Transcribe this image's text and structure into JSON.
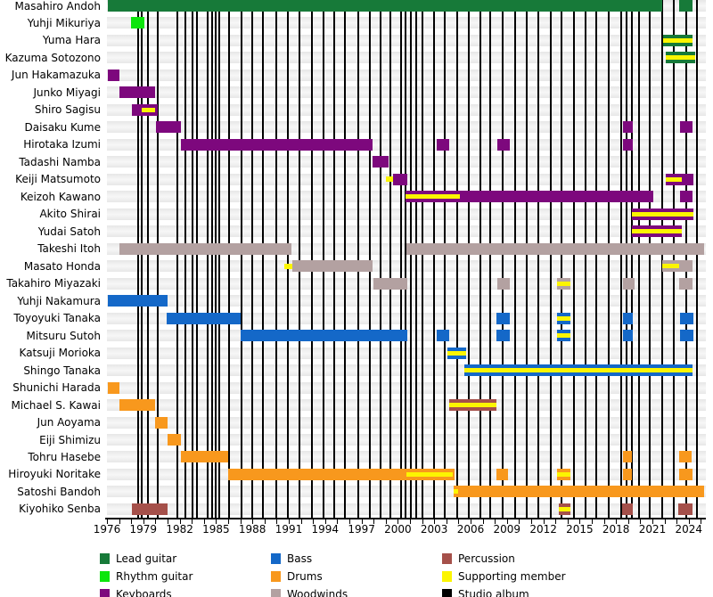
{
  "chart_data": {
    "type": "gantt-timeline",
    "description": "Band membership timeline: rows are members, horizontal bars show tenure by instrument, yellow stripes mark supporting-member periods, vertical black lines mark studio albums.",
    "x_axis": {
      "origin_year": 1976,
      "min_year": 1976,
      "max_year": 2025.4,
      "tick_every_year_from": 1976,
      "tick_every_year_to": 2025,
      "label_years": [
        1976,
        1979,
        1982,
        1985,
        1988,
        1991,
        1994,
        1997,
        2000,
        2003,
        2006,
        2009,
        2012,
        2015,
        2018,
        2021,
        2024
      ]
    },
    "roles": {
      "lead": {
        "label": "Lead guitar",
        "color": "#177a39"
      },
      "rhythm": {
        "label": "Rhythm guitar",
        "color": "#0ce50c"
      },
      "keyboards": {
        "label": "Keyboards",
        "color": "#7d087d"
      },
      "bass": {
        "label": "Bass",
        "color": "#1468c8"
      },
      "drums": {
        "label": "Drums",
        "color": "#f8981d"
      },
      "woodwinds": {
        "label": "Woodwinds",
        "color": "#b3a1a1"
      },
      "percussion": {
        "label": "Percussion",
        "color": "#a5504a"
      },
      "support": {
        "label": "Supporting member",
        "color": "#fcf500"
      },
      "album": {
        "label": "Studio album",
        "color": "#000000"
      }
    },
    "legend_columns": [
      [
        "lead",
        "rhythm",
        "keyboards"
      ],
      [
        "bass",
        "drums",
        "woodwinds"
      ],
      [
        "percussion",
        "support",
        "album"
      ]
    ],
    "album_years": [
      1978.55,
      1978.85,
      1979.35,
      1980.2,
      1981.8,
      1982.5,
      1983.05,
      1983.4,
      1984.3,
      1984.65,
      1985.0,
      1985.3,
      1986.1,
      1987.1,
      1988.0,
      1988.9,
      1990.0,
      1990.9,
      1991.9,
      1992.9,
      1993.9,
      1994.75,
      1995.6,
      1996.7,
      1997.7,
      1998.55,
      1999.4,
      2000.3,
      2000.65,
      2001.05,
      2001.5,
      2002.05,
      2003.0,
      2003.9,
      2004.9,
      2005.85,
      2006.8,
      2007.65,
      2008.65,
      2009.65,
      2010.65,
      2011.6,
      2012.6,
      2013.5,
      2014.5,
      2015.5,
      2016.4,
      2017.4,
      2018.4,
      2018.9,
      2019.3,
      2019.9,
      2020.8,
      2021.8,
      2022.8,
      2023.8,
      2024.7
    ],
    "members": [
      {
        "name": "Masahiro Andoh",
        "segments": [
          {
            "role": "lead",
            "start": 1976.1,
            "end": 2021.8
          },
          {
            "role": "lead",
            "start": 2023.2,
            "end": 2024.3
          }
        ]
      },
      {
        "name": "Yuhji Mikuriya",
        "segments": [
          {
            "role": "rhythm",
            "start": 1978.0,
            "end": 1979.1
          }
        ]
      },
      {
        "name": "Yuma Hara",
        "segments": [
          {
            "role": "lead",
            "start": 2021.9,
            "end": 2024.3,
            "support": [
              2021.9,
              2024.3
            ]
          }
        ]
      },
      {
        "name": "Kazuma Sotozono",
        "segments": [
          {
            "role": "lead",
            "start": 2022.1,
            "end": 2024.5,
            "support": [
              2022.1,
              2024.5
            ]
          }
        ]
      },
      {
        "name": "Jun Hakamazuka",
        "segments": [
          {
            "role": "keyboards",
            "start": 1976.1,
            "end": 1977.0
          }
        ]
      },
      {
        "name": "Junko Miyagi",
        "segments": [
          {
            "role": "keyboards",
            "start": 1977.0,
            "end": 1980.0
          }
        ]
      },
      {
        "name": "Shiro Sagisu",
        "segments": [
          {
            "role": "keyboards",
            "start": 1978.05,
            "end": 1980.2,
            "support": [
              1978.9,
              1980.0
            ]
          }
        ]
      },
      {
        "name": "Daisaku Kume",
        "segments": [
          {
            "role": "keyboards",
            "start": 1980.05,
            "end": 1982.1
          },
          {
            "role": "keyboards",
            "start": 2018.6,
            "end": 2019.4
          },
          {
            "role": "keyboards",
            "start": 2023.3,
            "end": 2024.3
          }
        ]
      },
      {
        "name": "Hirotaka Izumi",
        "segments": [
          {
            "role": "keyboards",
            "start": 1982.1,
            "end": 1997.9
          },
          {
            "role": "keyboards",
            "start": 2003.2,
            "end": 2004.2
          },
          {
            "role": "keyboards",
            "start": 2008.2,
            "end": 2009.2
          },
          {
            "role": "keyboards",
            "start": 2018.6,
            "end": 2019.4
          }
        ]
      },
      {
        "name": "Tadashi Namba",
        "segments": [
          {
            "role": "keyboards",
            "start": 1997.9,
            "end": 1999.2
          }
        ]
      },
      {
        "name": "Keiji Matsumoto",
        "segments": [
          {
            "role": "support",
            "start": 1999.0,
            "end": 1999.6,
            "support_only": true
          },
          {
            "role": "keyboards",
            "start": 1999.6,
            "end": 2000.8
          },
          {
            "role": "keyboards",
            "start": 2022.1,
            "end": 2024.4,
            "support": [
              2022.1,
              2023.4
            ]
          }
        ]
      },
      {
        "name": "Keizoh Kawano",
        "segments": [
          {
            "role": "keyboards",
            "start": 2000.6,
            "end": 2021.1,
            "support": [
              2000.6,
              2005.1
            ]
          },
          {
            "role": "keyboards",
            "start": 2023.3,
            "end": 2024.3
          }
        ]
      },
      {
        "name": "Akito Shirai",
        "segments": [
          {
            "role": "keyboards",
            "start": 2019.3,
            "end": 2024.4,
            "support": [
              2019.3,
              2024.4
            ]
          }
        ]
      },
      {
        "name": "Yudai Satoh",
        "segments": [
          {
            "role": "keyboards",
            "start": 2019.3,
            "end": 2023.4,
            "support": [
              2019.3,
              2023.4
            ]
          }
        ]
      },
      {
        "name": "Takeshi Itoh",
        "segments": [
          {
            "role": "woodwinds",
            "start": 1977.0,
            "end": 1991.2
          },
          {
            "role": "woodwinds",
            "start": 2000.7,
            "end": 2025.3
          }
        ]
      },
      {
        "name": "Masato Honda",
        "segments": [
          {
            "role": "support",
            "start": 1990.6,
            "end": 1991.3,
            "support_only": true
          },
          {
            "role": "woodwinds",
            "start": 1991.3,
            "end": 1997.9
          },
          {
            "role": "woodwinds",
            "start": 2021.8,
            "end": 2024.3,
            "support": [
              2021.8,
              2023.2
            ]
          }
        ]
      },
      {
        "name": "Takahiro Miyazaki",
        "segments": [
          {
            "role": "woodwinds",
            "start": 1998.0,
            "end": 2000.8
          },
          {
            "role": "woodwinds",
            "start": 2008.2,
            "end": 2009.2
          },
          {
            "role": "woodwinds",
            "start": 2013.1,
            "end": 2014.2,
            "support": [
              2013.1,
              2014.2
            ]
          },
          {
            "role": "woodwinds",
            "start": 2018.6,
            "end": 2019.5
          },
          {
            "role": "woodwinds",
            "start": 2023.2,
            "end": 2024.3
          }
        ]
      },
      {
        "name": "Yuhji Nakamura",
        "segments": [
          {
            "role": "bass",
            "start": 1976.1,
            "end": 1981.0
          }
        ]
      },
      {
        "name": "Toyoyuki Tanaka",
        "segments": [
          {
            "role": "bass",
            "start": 1980.9,
            "end": 1987.0
          },
          {
            "role": "bass",
            "start": 2008.1,
            "end": 2009.2
          },
          {
            "role": "bass",
            "start": 2013.1,
            "end": 2014.2,
            "support": [
              2013.1,
              2014.2
            ]
          },
          {
            "role": "bass",
            "start": 2018.6,
            "end": 2019.4
          },
          {
            "role": "bass",
            "start": 2023.3,
            "end": 2024.4
          }
        ]
      },
      {
        "name": "Mitsuru Sutoh",
        "segments": [
          {
            "role": "bass",
            "start": 1987.0,
            "end": 2000.8
          },
          {
            "role": "bass",
            "start": 2003.2,
            "end": 2004.2
          },
          {
            "role": "bass",
            "start": 2008.1,
            "end": 2009.2
          },
          {
            "role": "bass",
            "start": 2013.1,
            "end": 2014.2,
            "support": [
              2013.1,
              2014.2
            ]
          },
          {
            "role": "bass",
            "start": 2018.6,
            "end": 2019.4
          },
          {
            "role": "bass",
            "start": 2023.3,
            "end": 2024.4
          }
        ]
      },
      {
        "name": "Katsuji Morioka",
        "segments": [
          {
            "role": "bass",
            "start": 2004.1,
            "end": 2005.6,
            "support": [
              2004.1,
              2005.6
            ]
          }
        ]
      },
      {
        "name": "Shingo Tanaka",
        "segments": [
          {
            "role": "bass",
            "start": 2005.5,
            "end": 2024.3,
            "support": [
              2005.5,
              2024.3
            ]
          }
        ]
      },
      {
        "name": "Shunichi Harada",
        "segments": [
          {
            "role": "drums",
            "start": 1976.1,
            "end": 1977.0
          }
        ]
      },
      {
        "name": "Michael S. Kawai",
        "segments": [
          {
            "role": "drums",
            "start": 1977.0,
            "end": 1980.0
          },
          {
            "role": "percussion",
            "start": 2004.2,
            "end": 2008.1,
            "support": [
              2004.2,
              2008.1
            ]
          }
        ]
      },
      {
        "name": "Jun Aoyama",
        "segments": [
          {
            "role": "drums",
            "start": 1980.0,
            "end": 1981.0
          }
        ]
      },
      {
        "name": "Eiji Shimizu",
        "segments": [
          {
            "role": "drums",
            "start": 1981.0,
            "end": 1982.1
          }
        ]
      },
      {
        "name": "Tohru Hasebe",
        "segments": [
          {
            "role": "drums",
            "start": 1982.1,
            "end": 1986.0
          },
          {
            "role": "drums",
            "start": 2018.6,
            "end": 2019.3
          },
          {
            "role": "drums",
            "start": 2023.2,
            "end": 2024.2
          }
        ]
      },
      {
        "name": "Hiroyuki Noritake",
        "segments": [
          {
            "role": "drums",
            "start": 1986.0,
            "end": 2004.7,
            "support": [
              2000.7,
              2004.5
            ]
          },
          {
            "role": "drums",
            "start": 2008.1,
            "end": 2009.1
          },
          {
            "role": "drums",
            "start": 2013.1,
            "end": 2014.2,
            "support": [
              2013.1,
              2014.2
            ]
          },
          {
            "role": "drums",
            "start": 2018.6,
            "end": 2019.3
          },
          {
            "role": "drums",
            "start": 2023.2,
            "end": 2024.3
          }
        ]
      },
      {
        "name": "Satoshi Bandoh",
        "segments": [
          {
            "role": "drums",
            "start": 2004.6,
            "end": 2025.3,
            "support": [
              2004.6,
              2005.0
            ]
          }
        ]
      },
      {
        "name": "Kiyohiko Senba",
        "segments": [
          {
            "role": "percussion",
            "start": 1978.05,
            "end": 1981.0
          },
          {
            "role": "percussion",
            "start": 2013.3,
            "end": 2014.2,
            "support": [
              2013.3,
              2014.2
            ]
          },
          {
            "role": "percussion",
            "start": 2018.5,
            "end": 2019.4
          },
          {
            "role": "percussion",
            "start": 2023.1,
            "end": 2024.3
          }
        ]
      }
    ]
  }
}
